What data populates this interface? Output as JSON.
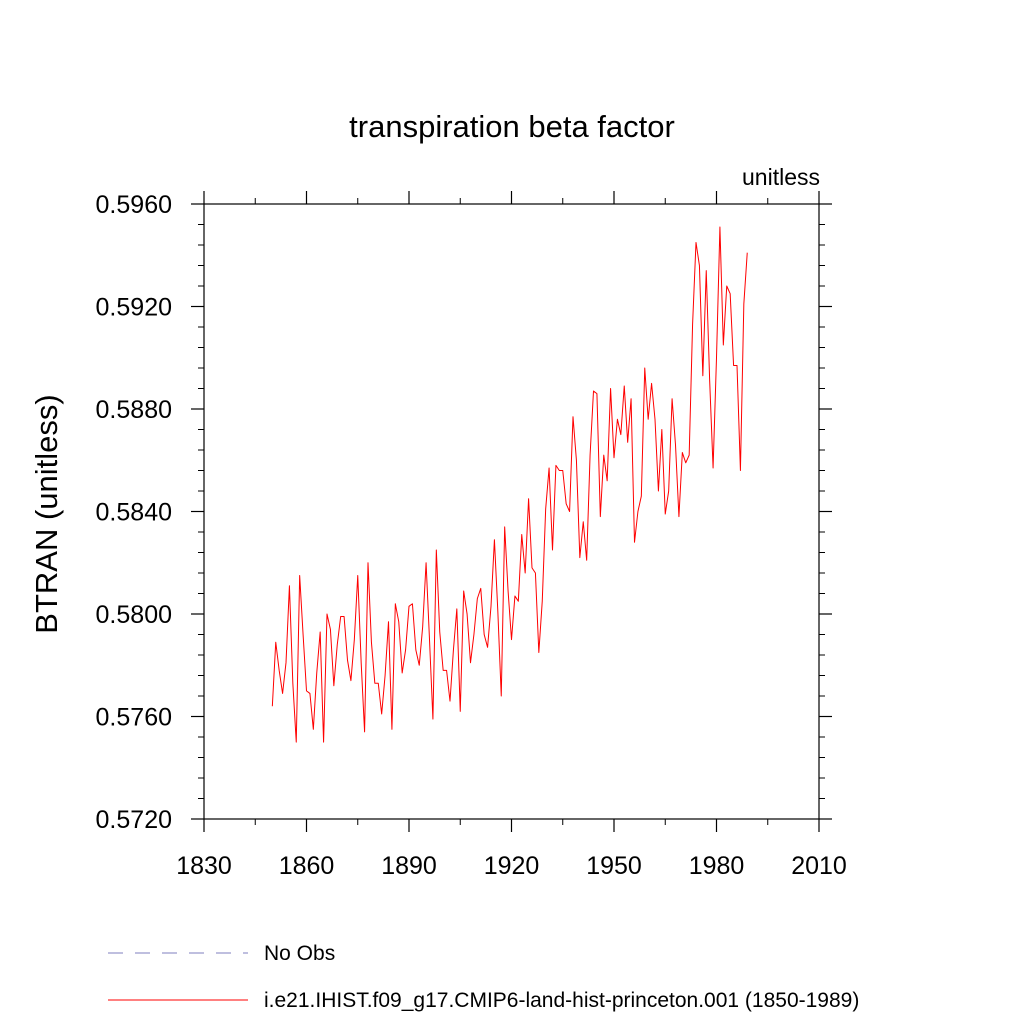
{
  "chart_data": {
    "type": "line",
    "title": "transpiration beta factor",
    "units_label": "unitless",
    "ylabel": "BTRAN  (unitless)",
    "xlabel": "",
    "xlim": [
      1830,
      2010
    ],
    "ylim": [
      0.572,
      0.596
    ],
    "x_ticks": [
      1830,
      1860,
      1890,
      1920,
      1950,
      1980,
      2010
    ],
    "x_tick_labels": [
      "1830",
      "1860",
      "1890",
      "1920",
      "1950",
      "1980",
      "2010"
    ],
    "y_ticks": [
      0.572,
      0.576,
      0.58,
      0.584,
      0.588,
      0.592,
      0.596
    ],
    "y_tick_labels": [
      "0.5720",
      "0.5760",
      "0.5800",
      "0.5840",
      "0.5880",
      "0.5920",
      "0.5960"
    ],
    "grid": false,
    "legend_position": "bottom-left",
    "series": [
      {
        "name": "i.e21.IHIST.f09_g17.CMIP6-land-hist-princeton.001 (1850-1989)",
        "color": "#ff0000",
        "style": "solid",
        "x_start": 1850,
        "x_step": 1,
        "values": [
          0.5764,
          0.5789,
          0.5778,
          0.5769,
          0.5781,
          0.5811,
          0.5773,
          0.575,
          0.5815,
          0.5792,
          0.577,
          0.5769,
          0.5755,
          0.5777,
          0.5793,
          0.575,
          0.58,
          0.5794,
          0.5772,
          0.5788,
          0.5799,
          0.5799,
          0.5782,
          0.5774,
          0.579,
          0.5815,
          0.5781,
          0.5754,
          0.582,
          0.5789,
          0.5773,
          0.5773,
          0.5761,
          0.5776,
          0.5797,
          0.5755,
          0.5804,
          0.5797,
          0.5777,
          0.5786,
          0.5803,
          0.5804,
          0.5786,
          0.578,
          0.5795,
          0.582,
          0.579,
          0.5759,
          0.5825,
          0.5793,
          0.5778,
          0.5778,
          0.5766,
          0.5786,
          0.5802,
          0.5762,
          0.5809,
          0.58,
          0.5781,
          0.5792,
          0.5806,
          0.581,
          0.5792,
          0.5787,
          0.5803,
          0.5829,
          0.5801,
          0.5768,
          0.5834,
          0.5809,
          0.579,
          0.5807,
          0.5805,
          0.5831,
          0.5816,
          0.5845,
          0.5818,
          0.5816,
          0.5785,
          0.5805,
          0.5841,
          0.5857,
          0.5825,
          0.5858,
          0.5856,
          0.5856,
          0.5843,
          0.584,
          0.5877,
          0.586,
          0.5822,
          0.5836,
          0.5821,
          0.5862,
          0.5887,
          0.5886,
          0.5838,
          0.5862,
          0.5852,
          0.5888,
          0.5861,
          0.5876,
          0.587,
          0.5889,
          0.5867,
          0.5884,
          0.5828,
          0.584,
          0.5846,
          0.5896,
          0.5876,
          0.589,
          0.5876,
          0.5848,
          0.5872,
          0.5839,
          0.5848,
          0.5884,
          0.5866,
          0.5838,
          0.5863,
          0.5859,
          0.5862,
          0.5913,
          0.5945,
          0.5936,
          0.5893,
          0.5934,
          0.5891,
          0.5857,
          0.59,
          0.5951,
          0.5905,
          0.5928,
          0.5925,
          0.5897,
          0.5897,
          0.5856,
          0.5921,
          0.5941
        ]
      },
      {
        "name": "No Obs",
        "color": "#7f7fbf",
        "style": "dashed",
        "values": []
      }
    ]
  }
}
